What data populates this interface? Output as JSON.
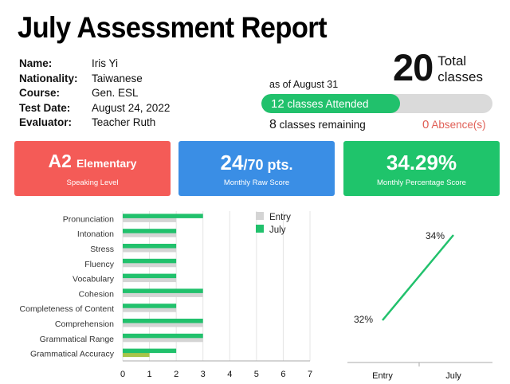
{
  "title": "July Assessment Report",
  "info": {
    "name_label": "Name:",
    "name": "Iris Yi",
    "nationality_label": "Nationality:",
    "nationality": "Taiwanese",
    "course_label": "Course:",
    "course": "Gen. ESL",
    "test_date_label": "Test Date:",
    "test_date": "August 24, 2022",
    "evaluator_label": "Evaluator:",
    "evaluator": "Teacher Ruth"
  },
  "classes": {
    "total": "20",
    "total_label_1": "Total",
    "total_label_2": "classes",
    "as_of": "as of August 31",
    "attended": "12",
    "attended_label": "classes Attended",
    "attended_fraction": 0.6,
    "remaining": "8",
    "remaining_label": "classes remaining",
    "absence": "0",
    "absence_label": "Absence(s)"
  },
  "cards": {
    "level": "A2",
    "level_name": "Elementary",
    "level_caption": "Speaking Level",
    "raw_score": "24",
    "raw_total": "/70 pts.",
    "raw_caption": "Monthly Raw Score",
    "percent": "34.29%",
    "percent_caption": "Monthly Percentage Score"
  },
  "colors": {
    "red": "#f45b57",
    "blue": "#3a8ee5",
    "green": "#1fc46b",
    "entry_bar": "#d4d4d4",
    "july_bar": "#21c16c",
    "accuracy_entry": "#a9c449"
  },
  "chart_data": [
    {
      "type": "bar",
      "orientation": "horizontal",
      "categories": [
        "Pronunciation",
        "Intonation",
        "Stress",
        "Fluency",
        "Vocabulary",
        "Cohesion",
        "Completeness of Content",
        "Comprehension",
        "Grammatical Range",
        "Grammatical Accuracy"
      ],
      "series": [
        {
          "name": "Entry",
          "values": [
            2,
            2,
            2,
            2,
            2,
            3,
            2,
            3,
            3,
            1
          ]
        },
        {
          "name": "July",
          "values": [
            3,
            2,
            2,
            2,
            2,
            3,
            2,
            3,
            3,
            2
          ]
        }
      ],
      "xlim": [
        0,
        7
      ],
      "xticks": [
        "0",
        "1",
        "2",
        "3",
        "4",
        "5",
        "6",
        "7"
      ],
      "legend": "top-right",
      "grid": true
    },
    {
      "type": "line",
      "categories": [
        "Entry",
        "July"
      ],
      "series": [
        {
          "values": [
            32,
            34
          ]
        }
      ],
      "labels": [
        "32%",
        "34%"
      ],
      "grid": false
    }
  ]
}
